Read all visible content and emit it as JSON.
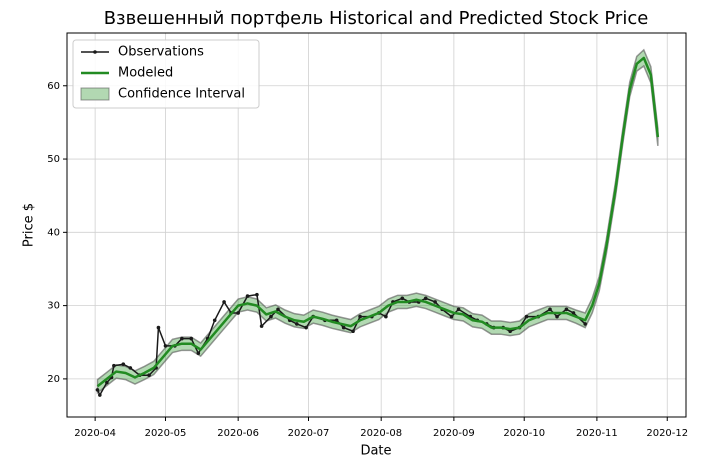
{
  "chart_data": {
    "type": "line",
    "title": "Взвешенный портфель Historical and Predicted Stock Price",
    "x_label": "Date",
    "y_label": "Price $",
    "xlim": [
      "2020-03-20",
      "2020-12-09"
    ],
    "xticks": [
      {
        "value": "2020-04-01",
        "label": "2020-04"
      },
      {
        "value": "2020-05-01",
        "label": "2020-05"
      },
      {
        "value": "2020-06-01",
        "label": "2020-06"
      },
      {
        "value": "2020-07-01",
        "label": "2020-07"
      },
      {
        "value": "2020-08-01",
        "label": "2020-08"
      },
      {
        "value": "2020-09-01",
        "label": "2020-09"
      },
      {
        "value": "2020-10-01",
        "label": "2020-10"
      },
      {
        "value": "2020-11-01",
        "label": "2020-11"
      },
      {
        "value": "2020-12-01",
        "label": "2020-12"
      }
    ],
    "ylim": [
      14.8,
      67.2
    ],
    "yticks": [
      20,
      30,
      40,
      50,
      60
    ],
    "grid": true,
    "legend": "upper-left",
    "series": [
      {
        "name": "Observations",
        "color": "#1a1a1a",
        "x": [
          "2020-04-02",
          "2020-04-03",
          "2020-04-06",
          "2020-04-08",
          "2020-04-09",
          "2020-04-13",
          "2020-04-16",
          "2020-04-20",
          "2020-04-24",
          "2020-04-27",
          "2020-04-28",
          "2020-05-01",
          "2020-05-05",
          "2020-05-08",
          "2020-05-12",
          "2020-05-15",
          "2020-05-19",
          "2020-05-22",
          "2020-05-26",
          "2020-05-29",
          "2020-06-01",
          "2020-06-05",
          "2020-06-09",
          "2020-06-11",
          "2020-06-15",
          "2020-06-18",
          "2020-06-23",
          "2020-06-26",
          "2020-06-30",
          "2020-07-03",
          "2020-07-08",
          "2020-07-13",
          "2020-07-16",
          "2020-07-20",
          "2020-07-23",
          "2020-07-28",
          "2020-07-31",
          "2020-08-03",
          "2020-08-06",
          "2020-08-10",
          "2020-08-13",
          "2020-08-17",
          "2020-08-20",
          "2020-08-24",
          "2020-08-27",
          "2020-08-31",
          "2020-09-03",
          "2020-09-08",
          "2020-09-11",
          "2020-09-15",
          "2020-09-18",
          "2020-09-22",
          "2020-09-25",
          "2020-09-29",
          "2020-10-02",
          "2020-10-07",
          "2020-10-12",
          "2020-10-15",
          "2020-10-19",
          "2020-10-22",
          "2020-10-27"
        ],
        "values": [
          18.5,
          17.8,
          19.5,
          20.2,
          21.8,
          22.0,
          21.5,
          20.5,
          20.5,
          21.5,
          27.0,
          24.5,
          24.5,
          25.5,
          25.5,
          23.5,
          25.5,
          28.0,
          30.5,
          29.0,
          29.0,
          31.3,
          31.5,
          27.2,
          28.5,
          29.5,
          28.0,
          27.5,
          27.0,
          28.5,
          28.0,
          28.0,
          27.0,
          26.5,
          28.5,
          28.5,
          29.0,
          28.5,
          30.5,
          31.0,
          30.5,
          30.5,
          31.0,
          30.5,
          29.5,
          28.5,
          29.5,
          28.5,
          28.0,
          27.5,
          27.0,
          27.0,
          26.5,
          27.0,
          28.5,
          28.5,
          29.5,
          28.5,
          29.5,
          29.0,
          27.5
        ]
      },
      {
        "name": "Modeled",
        "color": "#228b22",
        "x": [
          "2020-04-02",
          "2020-04-06",
          "2020-04-10",
          "2020-04-14",
          "2020-04-18",
          "2020-04-22",
          "2020-04-26",
          "2020-04-30",
          "2020-05-04",
          "2020-05-08",
          "2020-05-12",
          "2020-05-16",
          "2020-05-20",
          "2020-05-24",
          "2020-05-28",
          "2020-06-01",
          "2020-06-05",
          "2020-06-09",
          "2020-06-13",
          "2020-06-17",
          "2020-06-21",
          "2020-06-25",
          "2020-06-29",
          "2020-07-03",
          "2020-07-07",
          "2020-07-11",
          "2020-07-15",
          "2020-07-19",
          "2020-07-23",
          "2020-07-27",
          "2020-07-31",
          "2020-08-04",
          "2020-08-08",
          "2020-08-12",
          "2020-08-16",
          "2020-08-20",
          "2020-08-24",
          "2020-08-28",
          "2020-09-01",
          "2020-09-05",
          "2020-09-09",
          "2020-09-13",
          "2020-09-17",
          "2020-09-21",
          "2020-09-25",
          "2020-09-29",
          "2020-10-03",
          "2020-10-07",
          "2020-10-11",
          "2020-10-15",
          "2020-10-19",
          "2020-10-23",
          "2020-10-27",
          "2020-10-30",
          "2020-11-02",
          "2020-11-05",
          "2020-11-09",
          "2020-11-12",
          "2020-11-15",
          "2020-11-18",
          "2020-11-21",
          "2020-11-24",
          "2020-11-27"
        ],
        "values": [
          19.0,
          20.0,
          21.0,
          20.8,
          20.2,
          20.8,
          21.5,
          23.0,
          24.5,
          24.8,
          24.8,
          24.0,
          25.5,
          27.0,
          28.5,
          30.0,
          30.3,
          30.0,
          28.8,
          29.2,
          28.5,
          28.0,
          27.8,
          28.5,
          28.2,
          27.8,
          27.5,
          27.2,
          28.0,
          28.5,
          29.0,
          30.0,
          30.5,
          30.5,
          30.8,
          30.5,
          30.0,
          29.5,
          29.0,
          28.8,
          28.0,
          27.8,
          27.0,
          27.0,
          26.8,
          27.0,
          28.0,
          28.5,
          29.0,
          29.0,
          29.0,
          28.5,
          28.0,
          30.0,
          33.0,
          38.0,
          46.0,
          53.0,
          59.5,
          63.0,
          63.8,
          61.5,
          53.0
        ]
      },
      {
        "name": "Confidence Interval",
        "color": "#b2d8b2",
        "edge_color": "#555555",
        "lower": [
          18.1,
          19.1,
          20.1,
          19.9,
          19.3,
          19.9,
          20.6,
          22.1,
          23.6,
          23.9,
          23.9,
          23.1,
          24.6,
          26.1,
          27.6,
          29.1,
          29.4,
          29.1,
          27.9,
          28.3,
          27.6,
          27.1,
          26.9,
          27.6,
          27.3,
          26.9,
          26.6,
          26.3,
          27.1,
          27.6,
          28.1,
          29.1,
          29.6,
          29.6,
          29.9,
          29.6,
          29.1,
          28.6,
          28.1,
          27.9,
          27.1,
          26.9,
          26.1,
          26.1,
          25.9,
          26.1,
          27.1,
          27.6,
          28.1,
          28.1,
          28.1,
          27.6,
          27.0,
          29.0,
          32.0,
          37.0,
          45.0,
          52.0,
          58.5,
          62.0,
          62.7,
          60.4,
          51.8
        ],
        "upper": [
          19.9,
          20.9,
          21.9,
          21.7,
          21.1,
          21.7,
          22.4,
          23.9,
          25.4,
          25.7,
          25.7,
          24.9,
          26.4,
          27.9,
          29.4,
          30.9,
          31.2,
          30.9,
          29.7,
          30.1,
          29.4,
          28.9,
          28.7,
          29.4,
          29.1,
          28.7,
          28.4,
          28.1,
          28.9,
          29.4,
          29.9,
          30.9,
          31.4,
          31.4,
          31.7,
          31.4,
          30.9,
          30.4,
          29.9,
          29.7,
          28.9,
          28.7,
          27.9,
          27.9,
          27.7,
          27.9,
          28.9,
          29.4,
          29.9,
          29.9,
          29.9,
          29.4,
          29.0,
          31.0,
          34.0,
          39.0,
          47.0,
          54.0,
          60.5,
          64.0,
          64.9,
          62.6,
          54.2
        ]
      }
    ]
  }
}
